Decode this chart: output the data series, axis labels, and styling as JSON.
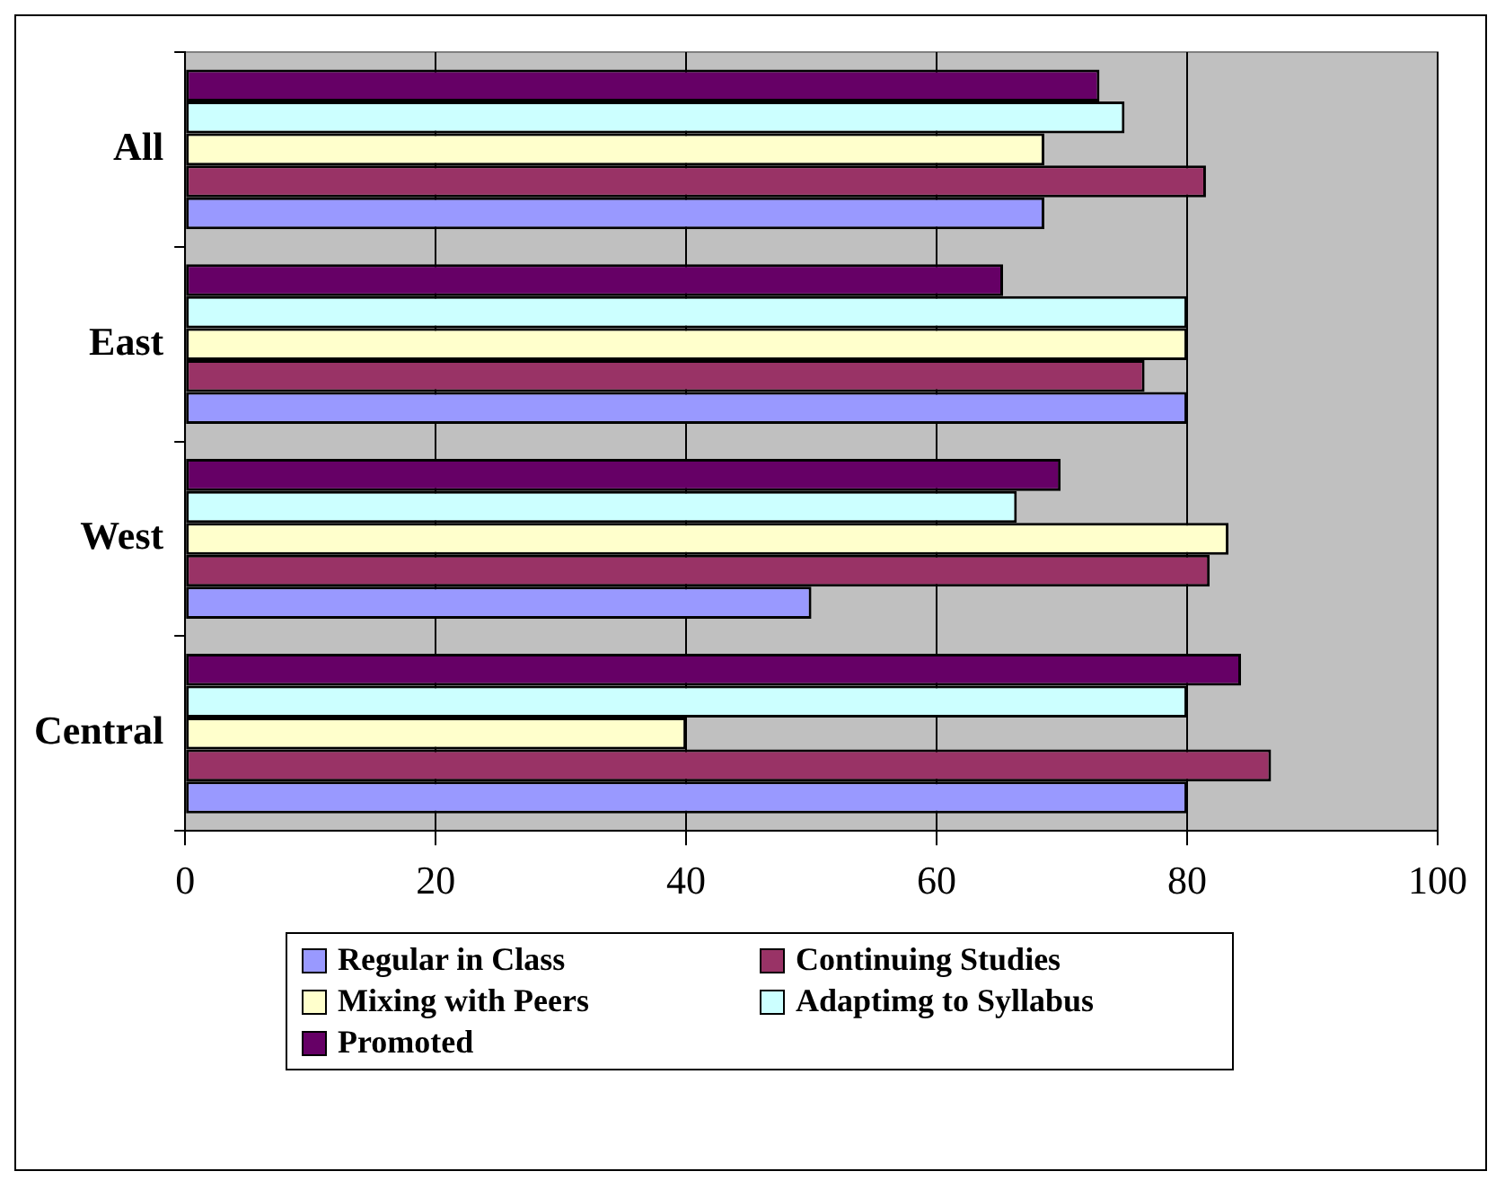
{
  "chart_data": {
    "type": "bar",
    "orientation": "horizontal",
    "categories": [
      "All",
      "East",
      "West",
      "Central"
    ],
    "series": [
      {
        "name": "Regular in Class",
        "color": "#9999ff",
        "values": [
          68.6,
          80,
          50,
          80
        ]
      },
      {
        "name": "Continuing Studies",
        "color": "#993366",
        "values": [
          81.5,
          76.6,
          81.8,
          86.7
        ]
      },
      {
        "name": "Mixing with Peers",
        "color": "#ffffcc",
        "values": [
          68.6,
          80,
          83.3,
          40
        ]
      },
      {
        "name": "Adaptimg to Syllabus",
        "color": "#ccffff",
        "values": [
          75,
          80,
          66.4,
          80
        ]
      },
      {
        "name": "Promoted",
        "color": "#660066",
        "values": [
          73,
          65.3,
          69.9,
          84.3
        ]
      }
    ],
    "xlim": [
      0,
      100
    ],
    "xticks": [
      0,
      20,
      40,
      60,
      80,
      100
    ],
    "grid": "x",
    "legend": "bottom"
  }
}
